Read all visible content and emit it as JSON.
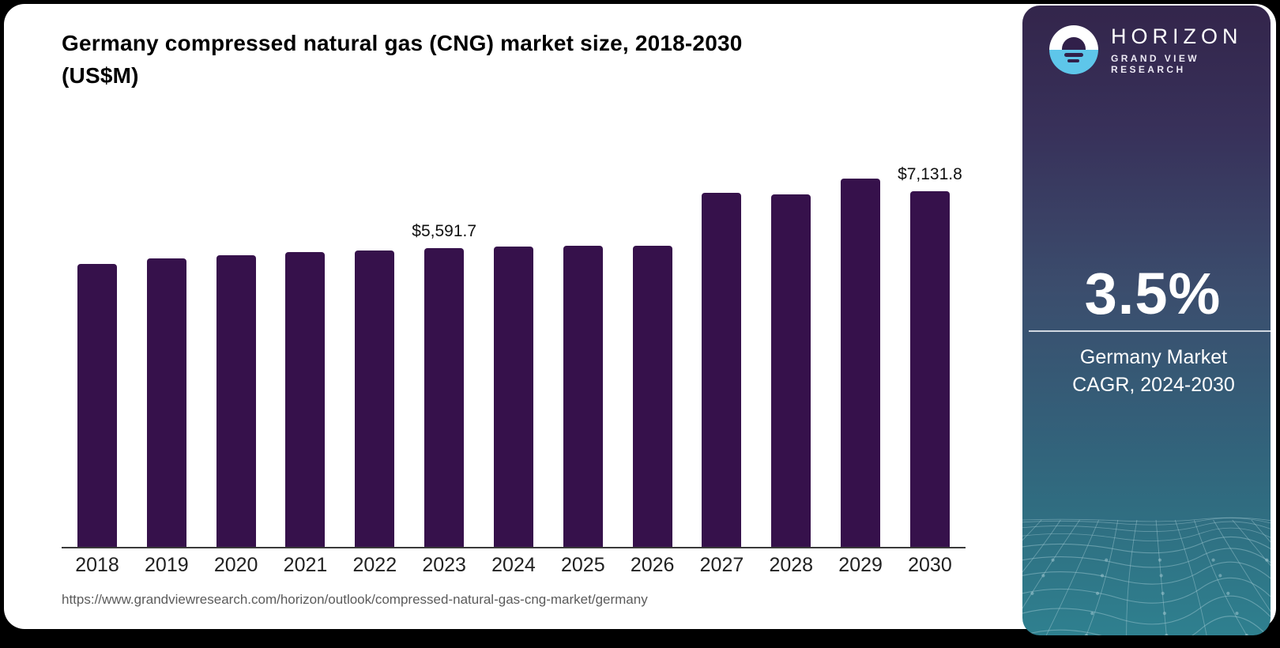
{
  "chart": {
    "title_main": "Germany compressed natural gas (CNG) market size, 2018-2030",
    "title_units": "(US$M)",
    "source_url": "https://www.grandviewresearch.com/horizon/outlook/compressed-natural-gas-cng-market/germany"
  },
  "chart_data": {
    "type": "bar",
    "title": "Germany compressed natural gas (CNG) market size, 2018-2030 (US$M)",
    "xlabel": "",
    "ylabel": "US$M",
    "categories": [
      "2018",
      "2019",
      "2020",
      "2021",
      "2022",
      "2023",
      "2024",
      "2025",
      "2026",
      "2027",
      "2028",
      "2029",
      "2030"
    ],
    "values": [
      5291,
      5396,
      5455,
      5514,
      5544,
      5591.7,
      5618,
      5633,
      5633,
      6624,
      6580,
      6875,
      7131.8
    ],
    "labeled_points": {
      "2023": "$5,591.7",
      "2030": "$7,131.8"
    },
    "ylim": [
      0,
      7500
    ],
    "grid": false,
    "legend_position": "none",
    "value_axis_hidden": true,
    "bar_color": "#36114b"
  },
  "sidebar": {
    "logo": {
      "brand": "HORIZON",
      "sub_brand": "GRAND VIEW RESEARCH",
      "icon_colors": {
        "top": "#ffffff",
        "bottom": "#5ec6ea",
        "glyph": "#31204a"
      }
    },
    "cagr_value": "3.5%",
    "cagr_caption_line1": "Germany Market",
    "cagr_caption_line2": "CAGR, 2024-2030",
    "accent_colors": {
      "panel_top": "#33254b",
      "panel_bottom": "#2f808f",
      "mesh_line": "#a9ced6"
    }
  }
}
